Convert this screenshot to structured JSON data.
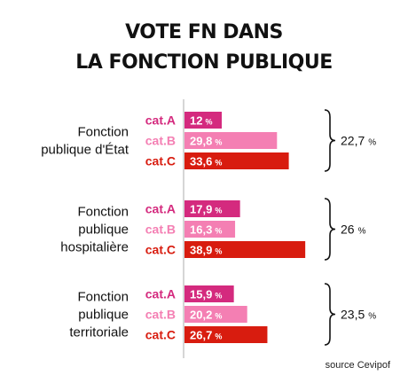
{
  "title_lines": [
    "VOTE FN DANS",
    "LA FONCTION PUBLIQUE"
  ],
  "source": "source Cevipof",
  "colors": {
    "cat.A": "#d42a7e",
    "cat.B": "#f47fb3",
    "cat.C": "#d81c0f",
    "axis": "#bbbbbb"
  },
  "chart_data": {
    "type": "bar",
    "orientation": "horizontal",
    "value_unit": "%",
    "xlim": [
      0,
      40
    ],
    "groups": [
      {
        "label": [
          "Fonction",
          "publique d'État"
        ],
        "total": "22,7 %",
        "bars": [
          {
            "category": "cat.A",
            "value": 12,
            "label": "12 %"
          },
          {
            "category": "cat.B",
            "value": 29.8,
            "label": "29,8 %"
          },
          {
            "category": "cat.C",
            "value": 33.6,
            "label": "33,6 %"
          }
        ]
      },
      {
        "label": [
          "Fonction",
          "publique",
          "hospitalière"
        ],
        "total": "26 %",
        "bars": [
          {
            "category": "cat.A",
            "value": 17.9,
            "label": "17,9 %"
          },
          {
            "category": "cat.B",
            "value": 16.3,
            "label": "16,3 %"
          },
          {
            "category": "cat.C",
            "value": 38.9,
            "label": "38,9 %"
          }
        ]
      },
      {
        "label": [
          "Fonction",
          "publique",
          "territoriale"
        ],
        "total": "23,5 %",
        "bars": [
          {
            "category": "cat.A",
            "value": 15.9,
            "label": "15,9 %"
          },
          {
            "category": "cat.B",
            "value": 20.2,
            "label": "20,2 %"
          },
          {
            "category": "cat.C",
            "value": 26.7,
            "label": "26,7 %"
          }
        ]
      }
    ]
  }
}
